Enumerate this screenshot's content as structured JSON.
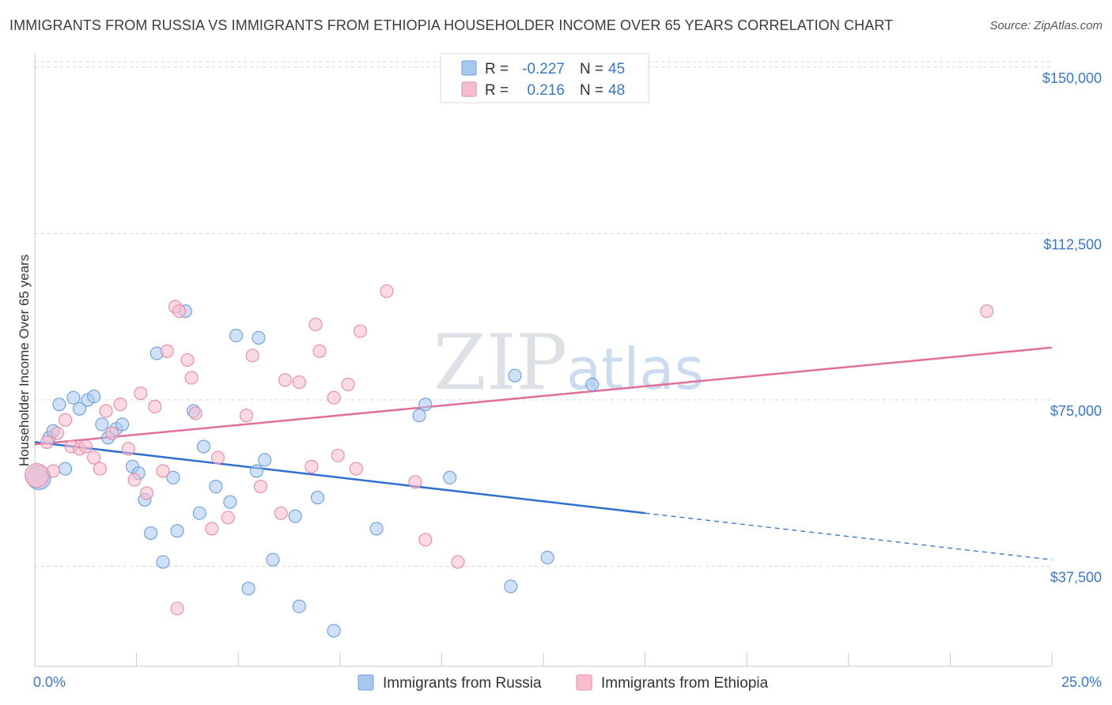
{
  "title": "IMMIGRANTS FROM RUSSIA VS IMMIGRANTS FROM ETHIOPIA HOUSEHOLDER INCOME OVER 65 YEARS CORRELATION CHART",
  "source": "Source: ZipAtlas.com",
  "watermark": {
    "zip": "ZIP",
    "atlas": "atlas"
  },
  "legend": {
    "r_label": "R =",
    "n_label": "N =",
    "rows": [
      {
        "r": "-0.227",
        "n": "45",
        "color": "#a9c8f0",
        "stroke": "#6b9edc"
      },
      {
        "r": "0.216",
        "n": "48",
        "color": "#f7bccd",
        "stroke": "#e88aa6"
      }
    ]
  },
  "chart_data": {
    "type": "scatter",
    "title": "IMMIGRANTS FROM RUSSIA VS IMMIGRANTS FROM ETHIOPIA HOUSEHOLDER INCOME OVER 65 YEARS CORRELATION CHART",
    "xlabel": "",
    "ylabel": "Householder Income Over 65 years",
    "xlim": [
      0,
      25
    ],
    "ylim": [
      15000,
      153000
    ],
    "x_tick_labels": [
      "0.0%",
      "25.0%"
    ],
    "y_ticks": [
      37500,
      75000,
      112500,
      150000
    ],
    "y_tick_labels": [
      "$37,500",
      "$75,000",
      "$112,500",
      "$150,000"
    ],
    "grid": "horizontal dashed",
    "series": [
      {
        "name": "Immigrants from Russia",
        "color": "#a9c8f0",
        "stroke": "#6b9edc",
        "trend_color": "#2f6fd0",
        "trend": {
          "x0": 0,
          "y0": 65500,
          "x1": 15,
          "y1": 49500,
          "dashed_to_x": 25,
          "dashed_to_y": 39000
        },
        "points": [
          [
            0.1,
            57500
          ],
          [
            0.35,
            66500
          ],
          [
            0.45,
            68000
          ],
          [
            0.6,
            74000
          ],
          [
            0.75,
            59500
          ],
          [
            0.95,
            75500
          ],
          [
            1.1,
            73000
          ],
          [
            1.3,
            75000
          ],
          [
            1.45,
            75800
          ],
          [
            1.65,
            69500
          ],
          [
            1.8,
            66500
          ],
          [
            2.0,
            68500
          ],
          [
            2.15,
            69500
          ],
          [
            2.4,
            60000
          ],
          [
            2.55,
            58500
          ],
          [
            2.7,
            52500
          ],
          [
            2.85,
            45000
          ],
          [
            3.0,
            85500
          ],
          [
            3.15,
            38500
          ],
          [
            3.4,
            57500
          ],
          [
            3.5,
            45500
          ],
          [
            3.7,
            95000
          ],
          [
            3.9,
            72500
          ],
          [
            4.15,
            64500
          ],
          [
            4.05,
            49500
          ],
          [
            4.45,
            55500
          ],
          [
            4.8,
            52000
          ],
          [
            4.95,
            89500
          ],
          [
            5.25,
            32500
          ],
          [
            5.5,
            89000
          ],
          [
            5.45,
            59000
          ],
          [
            5.65,
            61500
          ],
          [
            5.85,
            39000
          ],
          [
            6.4,
            48800
          ],
          [
            6.5,
            28500
          ],
          [
            6.95,
            53000
          ],
          [
            7.35,
            23000
          ],
          [
            8.4,
            46000
          ],
          [
            9.45,
            71500
          ],
          [
            9.6,
            74000
          ],
          [
            10.2,
            57500
          ],
          [
            11.7,
            33000
          ],
          [
            11.8,
            80500
          ],
          [
            12.6,
            39500
          ],
          [
            13.7,
            78500
          ]
        ]
      },
      {
        "name": "Immigrants from Ethiopia",
        "color": "#f7bccd",
        "stroke": "#e88aa6",
        "trend_color": "#e0709a",
        "trend": {
          "x0": 0,
          "y0": 65000,
          "x1": 25,
          "y1": 86800
        },
        "points": [
          [
            0.05,
            58000
          ],
          [
            0.3,
            65500
          ],
          [
            0.45,
            59000
          ],
          [
            0.55,
            67500
          ],
          [
            0.75,
            70500
          ],
          [
            0.9,
            64500
          ],
          [
            1.1,
            64000
          ],
          [
            1.25,
            64500
          ],
          [
            1.45,
            62000
          ],
          [
            1.6,
            59500
          ],
          [
            1.75,
            72500
          ],
          [
            1.9,
            67500
          ],
          [
            2.1,
            74000
          ],
          [
            2.3,
            64000
          ],
          [
            2.45,
            57000
          ],
          [
            2.6,
            76500
          ],
          [
            2.75,
            54000
          ],
          [
            2.95,
            73500
          ],
          [
            3.15,
            59000
          ],
          [
            3.25,
            86000
          ],
          [
            3.45,
            96000
          ],
          [
            3.5,
            28000
          ],
          [
            3.55,
            95000
          ],
          [
            3.75,
            84000
          ],
          [
            3.95,
            72000
          ],
          [
            3.85,
            80000
          ],
          [
            4.35,
            46000
          ],
          [
            4.5,
            62000
          ],
          [
            4.75,
            48500
          ],
          [
            5.2,
            71500
          ],
          [
            5.35,
            85000
          ],
          [
            5.55,
            55500
          ],
          [
            6.05,
            49500
          ],
          [
            6.15,
            79500
          ],
          [
            6.5,
            79000
          ],
          [
            6.8,
            60000
          ],
          [
            6.9,
            92000
          ],
          [
            7.0,
            86000
          ],
          [
            7.35,
            75500
          ],
          [
            7.45,
            62500
          ],
          [
            7.7,
            78500
          ],
          [
            7.9,
            59500
          ],
          [
            8.0,
            90500
          ],
          [
            8.65,
            99500
          ],
          [
            9.35,
            56500
          ],
          [
            9.6,
            43500
          ],
          [
            10.4,
            38500
          ],
          [
            23.4,
            95000
          ]
        ]
      }
    ],
    "legend_position": "top-center"
  },
  "bottom_legend": [
    {
      "label": "Immigrants from Russia",
      "color": "#a9c8f0",
      "stroke": "#6b9edc"
    },
    {
      "label": "Immigrants from Ethiopia",
      "color": "#f7bccd",
      "stroke": "#e88aa6"
    }
  ]
}
